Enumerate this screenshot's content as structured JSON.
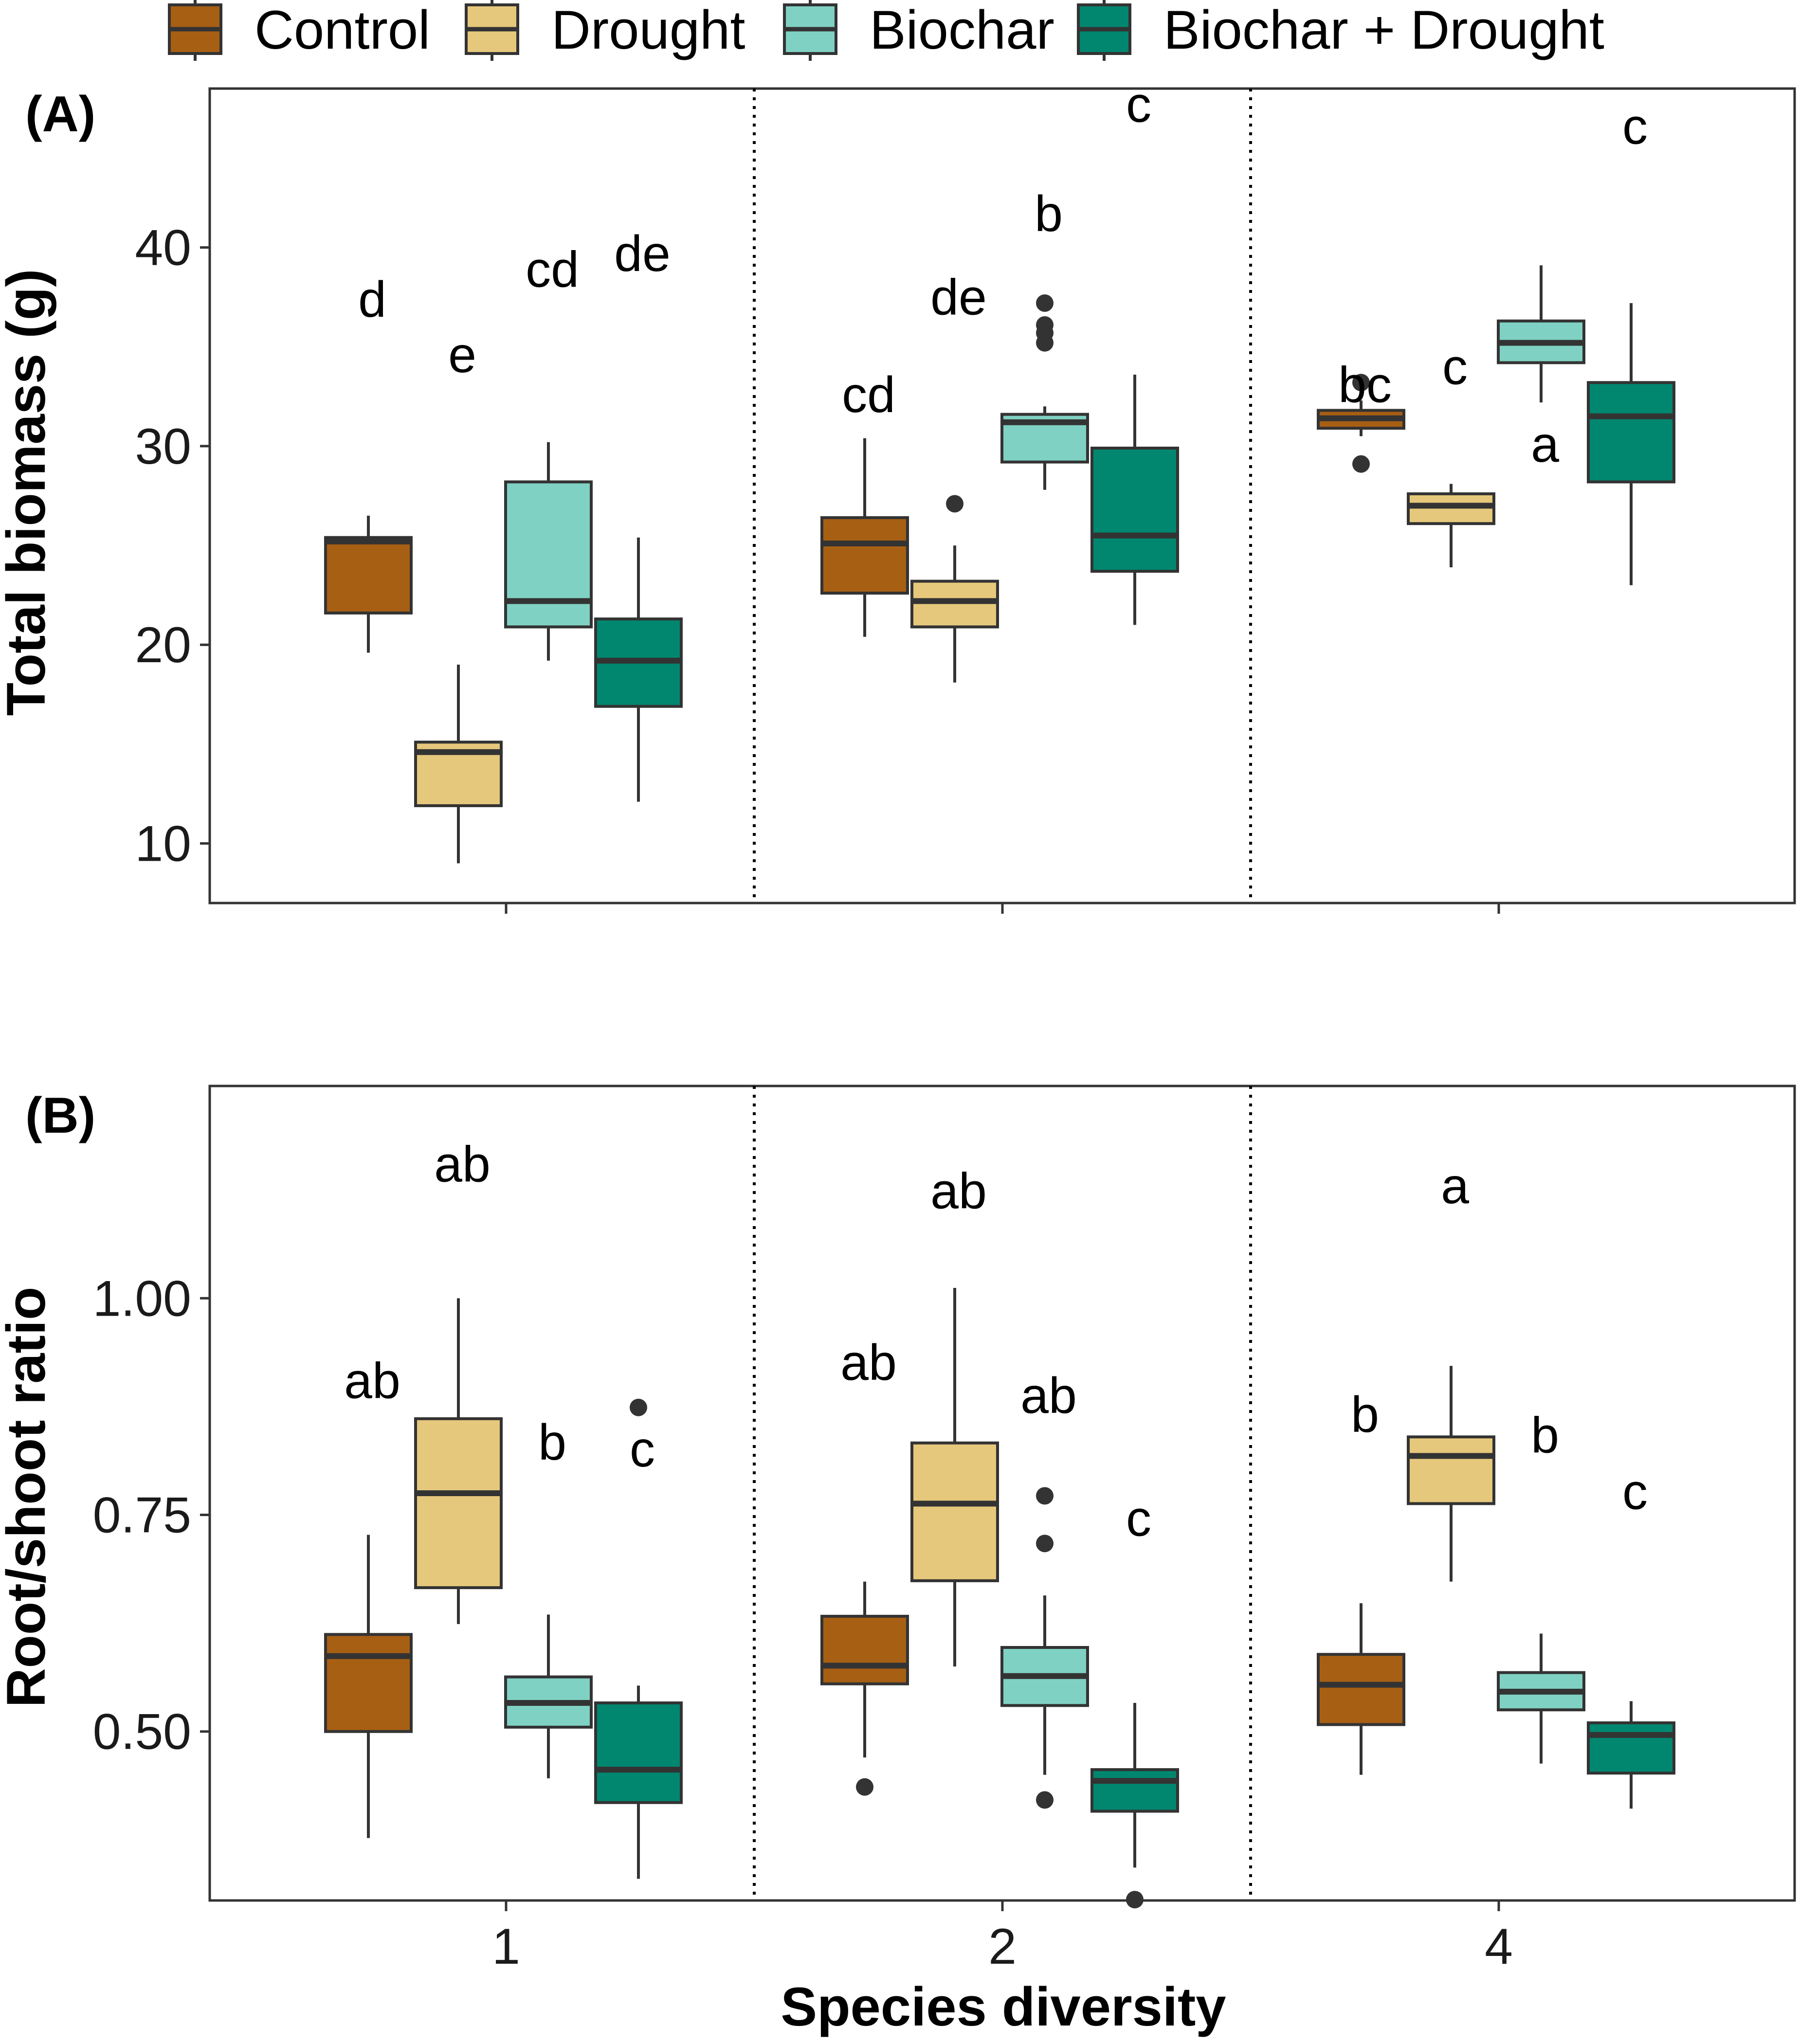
{
  "chart_data": [
    {
      "panel": "(A)",
      "type": "boxplot",
      "ylabel": "Total biomass (g)",
      "xlabel": "",
      "categories": [
        "1",
        "2",
        "4"
      ],
      "ylim": [
        7,
        48
      ],
      "yticks": [
        "10",
        "20",
        "30",
        "40"
      ],
      "grid": false,
      "group_separators": true,
      "series": [
        {
          "name": "Control",
          "color": "#A75F14",
          "boxes": [
            {
              "x": "1",
              "min": 19.6,
              "q1": 21.6,
              "median": 25.2,
              "q3": 25.4,
              "max": 26.5,
              "outliers": [],
              "letter": "d"
            },
            {
              "x": "2",
              "min": 20.4,
              "q1": 22.6,
              "median": 25.1,
              "q3": 26.4,
              "max": 30.4,
              "outliers": [],
              "letter": "cd"
            },
            {
              "x": "4",
              "min": 30.5,
              "q1": 30.9,
              "median": 31.4,
              "q3": 31.8,
              "max": 32.3,
              "outliers": [
                33.2,
                29.1
              ],
              "letter": "bc"
            }
          ]
        },
        {
          "name": "Drought",
          "color": "#E6C87C",
          "boxes": [
            {
              "x": "1",
              "min": 9.0,
              "q1": 11.9,
              "median": 14.6,
              "q3": 15.1,
              "max": 19.0,
              "outliers": [],
              "letter": "e"
            },
            {
              "x": "2",
              "min": 18.1,
              "q1": 20.9,
              "median": 22.2,
              "q3": 23.2,
              "max": 25.0,
              "outliers": [
                27.1
              ],
              "letter": "de"
            },
            {
              "x": "4",
              "min": 23.9,
              "q1": 26.1,
              "median": 27.0,
              "q3": 27.6,
              "max": 28.1,
              "outliers": [],
              "letter": "c"
            }
          ]
        },
        {
          "name": "Biochar",
          "color": "#7FD1C3",
          "boxes": [
            {
              "x": "1",
              "min": 19.2,
              "q1": 20.9,
              "median": 22.2,
              "q3": 28.2,
              "max": 30.2,
              "outliers": [],
              "letter": "cd"
            },
            {
              "x": "2",
              "min": 27.8,
              "q1": 29.2,
              "median": 31.2,
              "q3": 31.6,
              "max": 32.0,
              "outliers": [
                35.2,
                35.7,
                36.1,
                37.2
              ],
              "letter": "b"
            },
            {
              "x": "4",
              "min": 32.2,
              "q1": 34.2,
              "median": 35.2,
              "q3": 36.3,
              "max": 39.1,
              "outliers": [],
              "letter": "a"
            }
          ]
        },
        {
          "name": "Biochar + Drought",
          "color": "#01866F",
          "boxes": [
            {
              "x": "1",
              "min": 12.1,
              "q1": 16.9,
              "median": 19.2,
              "q3": 21.3,
              "max": 25.4,
              "outliers": [],
              "letter": "de"
            },
            {
              "x": "2",
              "min": 21.0,
              "q1": 23.7,
              "median": 25.5,
              "q3": 29.9,
              "max": 33.6,
              "outliers": [],
              "letter": "c"
            },
            {
              "x": "4",
              "min": 23.0,
              "q1": 28.2,
              "median": 31.5,
              "q3": 33.2,
              "max": 37.2,
              "outliers": [],
              "letter": "c"
            }
          ]
        }
      ],
      "letter_values": [
        [
          37.4,
          32.6,
          33.1,
          33.2,
          34.3
        ],
        [
          34.6,
          37.5,
          34.0,
          44.9,
          28.6
        ],
        [
          38.9,
          41.7,
          30.1,
          30.4,
          36.0
        ],
        [
          39.7,
          47.2,
          46.1,
          33.9,
          42.9
        ]
      ]
    },
    {
      "panel": "(B)",
      "type": "boxplot",
      "ylabel": "Root/shoot ratio",
      "xlabel": "Species diversity",
      "categories": [
        "1",
        "2",
        "4"
      ],
      "ylim": [
        0.305,
        1.245
      ],
      "yticks": [
        "0.50",
        "0.75",
        "1.00"
      ],
      "grid": false,
      "group_separators": true,
      "series": [
        {
          "name": "Control",
          "color": "#A75F14",
          "boxes": [
            {
              "x": "1",
              "min": 0.377,
              "q1": 0.5,
              "median": 0.587,
              "q3": 0.612,
              "max": 0.727,
              "outliers": [],
              "letter": "ab"
            },
            {
              "x": "2",
              "min": 0.47,
              "q1": 0.555,
              "median": 0.576,
              "q3": 0.633,
              "max": 0.673,
              "outliers": [
                0.436
              ],
              "letter": "ab"
            },
            {
              "x": "4",
              "min": 0.45,
              "q1": 0.508,
              "median": 0.554,
              "q3": 0.589,
              "max": 0.648,
              "outliers": [],
              "letter": "b"
            }
          ]
        },
        {
          "name": "Drought",
          "color": "#E6C87C",
          "boxes": [
            {
              "x": "1",
              "min": 0.624,
              "q1": 0.666,
              "median": 0.775,
              "q3": 0.861,
              "max": 1.0,
              "outliers": [],
              "letter": "ab"
            },
            {
              "x": "2",
              "min": 0.575,
              "q1": 0.674,
              "median": 0.763,
              "q3": 0.833,
              "max": 1.012,
              "outliers": [],
              "letter": "ab"
            },
            {
              "x": "4",
              "min": 0.673,
              "q1": 0.763,
              "median": 0.818,
              "q3": 0.84,
              "max": 0.922,
              "outliers": [],
              "letter": "a"
            }
          ]
        },
        {
          "name": "Biochar",
          "color": "#7FD1C3",
          "boxes": [
            {
              "x": "1",
              "min": 0.446,
              "q1": 0.505,
              "median": 0.533,
              "q3": 0.563,
              "max": 0.635,
              "outliers": [],
              "letter": "b"
            },
            {
              "x": "2",
              "min": 0.45,
              "q1": 0.53,
              "median": 0.564,
              "q3": 0.597,
              "max": 0.657,
              "outliers": [
                0.772,
                0.717,
                0.421
              ],
              "letter": "ab"
            },
            {
              "x": "4",
              "min": 0.463,
              "q1": 0.525,
              "median": 0.546,
              "q3": 0.568,
              "max": 0.613,
              "outliers": [],
              "letter": "b"
            }
          ]
        },
        {
          "name": "Biochar + Drought",
          "color": "#01866F",
          "boxes": [
            {
              "x": "1",
              "min": 0.33,
              "q1": 0.418,
              "median": 0.456,
              "q3": 0.533,
              "max": 0.553,
              "outliers": [
                0.874
              ],
              "letter": "c"
            },
            {
              "x": "2",
              "min": 0.343,
              "q1": 0.408,
              "median": 0.443,
              "q3": 0.456,
              "max": 0.533,
              "outliers": [
                0.306
              ],
              "letter": "c"
            },
            {
              "x": "4",
              "min": 0.411,
              "q1": 0.452,
              "median": 0.496,
              "q3": 0.51,
              "max": 0.535,
              "outliers": [],
              "letter": "c"
            }
          ]
        }
      ],
      "letter_values": [
        [
          0.905,
          0.926,
          0.866
        ],
        [
          1.155,
          1.124,
          1.13
        ],
        [
          0.834,
          0.888,
          0.842
        ],
        [
          0.826,
          0.746,
          0.777
        ]
      ]
    }
  ],
  "legend": {
    "items": [
      "Control",
      "Drought",
      "Biochar",
      "Biochar + Drought"
    ],
    "colors": [
      "#A75F14",
      "#E6C87C",
      "#7FD1C3",
      "#01866F"
    ]
  },
  "colors": {
    "outline": "#333333",
    "axis": "#333333"
  }
}
